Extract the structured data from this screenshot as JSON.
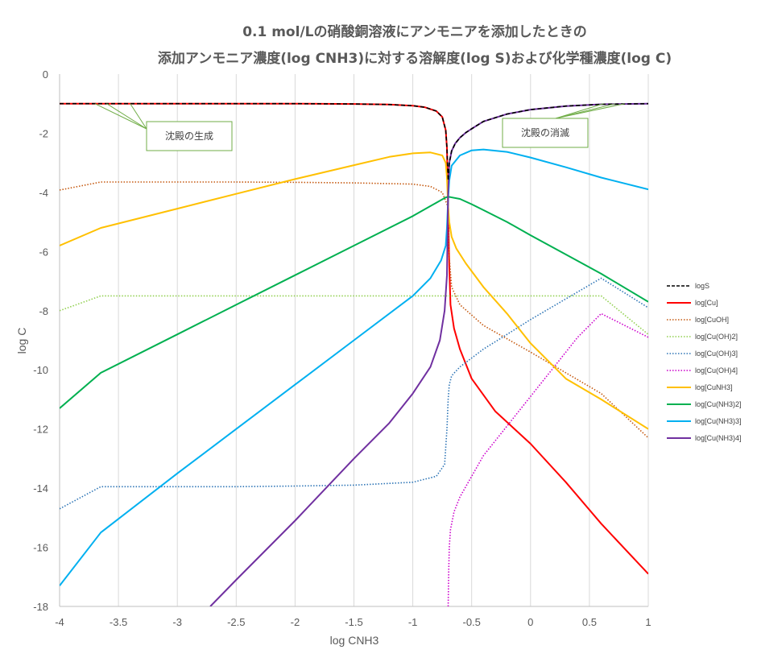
{
  "chart_data": {
    "type": "line",
    "title": [
      "0.1 mol/Lの硝酸銅溶液にアンモニアを添加したときの",
      "添加アンモニア濃度(log CNH3)に対する溶解度(log S)および化学種濃度(log C)"
    ],
    "xlabel": "log CNH3",
    "ylabel": "log C",
    "xlim": [
      -4,
      1
    ],
    "ylim": [
      -18,
      0
    ],
    "x_ticks": [
      "-4",
      "-3.5",
      "-3",
      "-2.5",
      "-2",
      "-1.5",
      "-1",
      "-0.5",
      "0",
      "0.5",
      "1"
    ],
    "y_ticks": [
      "0",
      "-2",
      "-4",
      "-6",
      "-8",
      "-10",
      "-12",
      "-14",
      "-16",
      "-18"
    ],
    "grid": "vertical",
    "legend_position": "right",
    "annotations": [
      {
        "text": "沈殿の生成",
        "points": [
          [
            -3.7,
            -1.0
          ],
          [
            -3.4,
            -1.0
          ],
          [
            -3.6,
            -1.0
          ]
        ]
      },
      {
        "text": "沈殿の消滅",
        "points": [
          [
            0.62,
            -1.0
          ],
          [
            0.72,
            -1.0
          ],
          [
            0.8,
            -1.0
          ]
        ]
      }
    ],
    "series": [
      {
        "name": "logS",
        "color": "#000000",
        "style": "dashed",
        "x": [
          -4,
          -3.5,
          -3,
          -2.5,
          -2,
          -1.5,
          -1.2,
          -1.0,
          -0.9,
          -0.8,
          -0.75,
          -0.72,
          -0.71,
          -0.7,
          -0.69,
          -0.67,
          -0.64,
          -0.6,
          -0.55,
          -0.5,
          -0.4,
          -0.2,
          0,
          0.3,
          0.6,
          1
        ],
        "y": [
          -1.0,
          -1.0,
          -1.0,
          -1.0,
          -1.0,
          -1.01,
          -1.03,
          -1.07,
          -1.12,
          -1.25,
          -1.45,
          -1.9,
          -2.5,
          -3.6,
          -3.0,
          -2.6,
          -2.35,
          -2.15,
          -1.98,
          -1.85,
          -1.6,
          -1.35,
          -1.2,
          -1.08,
          -1.02,
          -1.0
        ]
      },
      {
        "name": "log[Cu]",
        "color": "#ff0000",
        "style": "solid",
        "x": [
          -4,
          -3.5,
          -3,
          -2.5,
          -2,
          -1.5,
          -1.2,
          -1.0,
          -0.9,
          -0.8,
          -0.75,
          -0.72,
          -0.71,
          -0.7,
          -0.69,
          -0.68,
          -0.65,
          -0.6,
          -0.5,
          -0.3,
          0,
          0.3,
          0.6,
          1
        ],
        "y": [
          -1.0,
          -1.0,
          -1.0,
          -1.0,
          -1.0,
          -1.01,
          -1.03,
          -1.07,
          -1.12,
          -1.25,
          -1.45,
          -1.9,
          -2.5,
          -4.5,
          -6.5,
          -7.8,
          -8.6,
          -9.3,
          -10.3,
          -11.4,
          -12.5,
          -13.8,
          -15.2,
          -16.9
        ]
      },
      {
        "name": "log[CuOH]",
        "color": "#c55a11",
        "style": "dotted",
        "x": [
          -4,
          -3.65,
          -3,
          -2.5,
          -2,
          -1.5,
          -1.0,
          -0.85,
          -0.75,
          -0.71,
          -0.7,
          -0.69,
          -0.67,
          -0.6,
          -0.4,
          0,
          0.6,
          1
        ],
        "y": [
          -3.92,
          -3.65,
          -3.65,
          -3.65,
          -3.66,
          -3.68,
          -3.72,
          -3.8,
          -4.0,
          -4.4,
          -4.6,
          -6.2,
          -7.2,
          -7.8,
          -8.5,
          -9.4,
          -10.8,
          -12.3
        ]
      },
      {
        "name": "log[Cu(OH)2]",
        "color": "#92d050",
        "style": "dotted",
        "x": [
          -4,
          -3.65,
          -3,
          -2,
          -1,
          -0.7,
          0,
          0.6,
          1
        ],
        "y": [
          -8.0,
          -7.5,
          -7.5,
          -7.5,
          -7.5,
          -7.5,
          -7.5,
          -7.5,
          -8.8
        ]
      },
      {
        "name": "log[Cu(OH)3]",
        "color": "#2e75b6",
        "style": "dotted",
        "x": [
          -4,
          -3.65,
          -3,
          -2.5,
          -2,
          -1.5,
          -1.0,
          -0.8,
          -0.73,
          -0.71,
          -0.7,
          -0.69,
          -0.67,
          -0.6,
          -0.4,
          -0.2,
          0,
          0.3,
          0.6,
          1
        ],
        "y": [
          -14.7,
          -13.95,
          -13.95,
          -13.95,
          -13.93,
          -13.9,
          -13.8,
          -13.6,
          -13.2,
          -12.0,
          -11.0,
          -10.5,
          -10.2,
          -9.9,
          -9.3,
          -8.8,
          -8.3,
          -7.6,
          -6.9,
          -7.9
        ]
      },
      {
        "name": "log[Cu(OH)4]",
        "color": "#cc00cc",
        "style": "dotted",
        "x": [
          -0.7,
          -0.695,
          -0.69,
          -0.68,
          -0.65,
          -0.6,
          -0.5,
          -0.4,
          -0.2,
          0,
          0.2,
          0.4,
          0.6,
          1
        ],
        "y": [
          -18.0,
          -16.8,
          -16.0,
          -15.4,
          -14.8,
          -14.3,
          -13.6,
          -12.9,
          -11.9,
          -10.9,
          -9.9,
          -8.9,
          -8.1,
          -8.9
        ]
      },
      {
        "name": "log[CuNH3]",
        "color": "#ffc000",
        "style": "solid",
        "x": [
          -4,
          -3.65,
          -3,
          -2.5,
          -2,
          -1.5,
          -1.2,
          -1.0,
          -0.85,
          -0.75,
          -0.72,
          -0.71,
          -0.7,
          -0.69,
          -0.67,
          -0.63,
          -0.55,
          -0.4,
          -0.2,
          0,
          0.3,
          0.6,
          1
        ],
        "y": [
          -5.8,
          -5.2,
          -4.55,
          -4.05,
          -3.55,
          -3.08,
          -2.8,
          -2.68,
          -2.65,
          -2.75,
          -3.0,
          -3.5,
          -4.5,
          -5.0,
          -5.5,
          -5.9,
          -6.4,
          -7.2,
          -8.1,
          -9.1,
          -10.3,
          -11.0,
          -12.0
        ]
      },
      {
        "name": "log[Cu(NH3)2]",
        "color": "#00b050",
        "style": "solid",
        "x": [
          -4,
          -3.65,
          -3,
          -2.5,
          -2,
          -1.5,
          -1.0,
          -0.8,
          -0.72,
          -0.7,
          -0.68,
          -0.6,
          -0.5,
          -0.4,
          -0.2,
          0,
          0.3,
          0.6,
          1
        ],
        "y": [
          -11.3,
          -10.1,
          -8.8,
          -7.8,
          -6.8,
          -5.8,
          -4.8,
          -4.35,
          -4.17,
          -4.15,
          -4.16,
          -4.22,
          -4.4,
          -4.6,
          -5.0,
          -5.45,
          -6.1,
          -6.75,
          -7.7
        ]
      },
      {
        "name": "log[Cu(NH3)3]",
        "color": "#00b0f0",
        "style": "solid",
        "x": [
          -4,
          -3.65,
          -3,
          -2.5,
          -2,
          -1.5,
          -1.0,
          -0.85,
          -0.76,
          -0.72,
          -0.71,
          -0.7,
          -0.69,
          -0.67,
          -0.6,
          -0.5,
          -0.4,
          -0.2,
          0,
          0.3,
          0.6,
          1
        ],
        "y": [
          -17.3,
          -15.5,
          -13.5,
          -12.0,
          -10.5,
          -9.0,
          -7.5,
          -6.9,
          -6.3,
          -5.8,
          -5.2,
          -4.2,
          -3.6,
          -3.1,
          -2.75,
          -2.58,
          -2.55,
          -2.63,
          -2.82,
          -3.15,
          -3.5,
          -3.9
        ]
      },
      {
        "name": "log[Cu(NH3)4]",
        "color": "#7030a0",
        "style": "solid",
        "x": [
          -2.72,
          -2.5,
          -2,
          -1.5,
          -1.2,
          -1.0,
          -0.85,
          -0.77,
          -0.73,
          -0.71,
          -0.7,
          -0.69,
          -0.67,
          -0.64,
          -0.6,
          -0.55,
          -0.5,
          -0.4,
          -0.2,
          0,
          0.3,
          0.6,
          1
        ],
        "y": [
          -18.0,
          -17.1,
          -15.1,
          -13.0,
          -11.8,
          -10.8,
          -9.9,
          -9.0,
          -8.0,
          -6.8,
          -4.0,
          -3.0,
          -2.6,
          -2.35,
          -2.15,
          -1.98,
          -1.85,
          -1.6,
          -1.35,
          -1.2,
          -1.08,
          -1.02,
          -1.0
        ]
      }
    ]
  }
}
